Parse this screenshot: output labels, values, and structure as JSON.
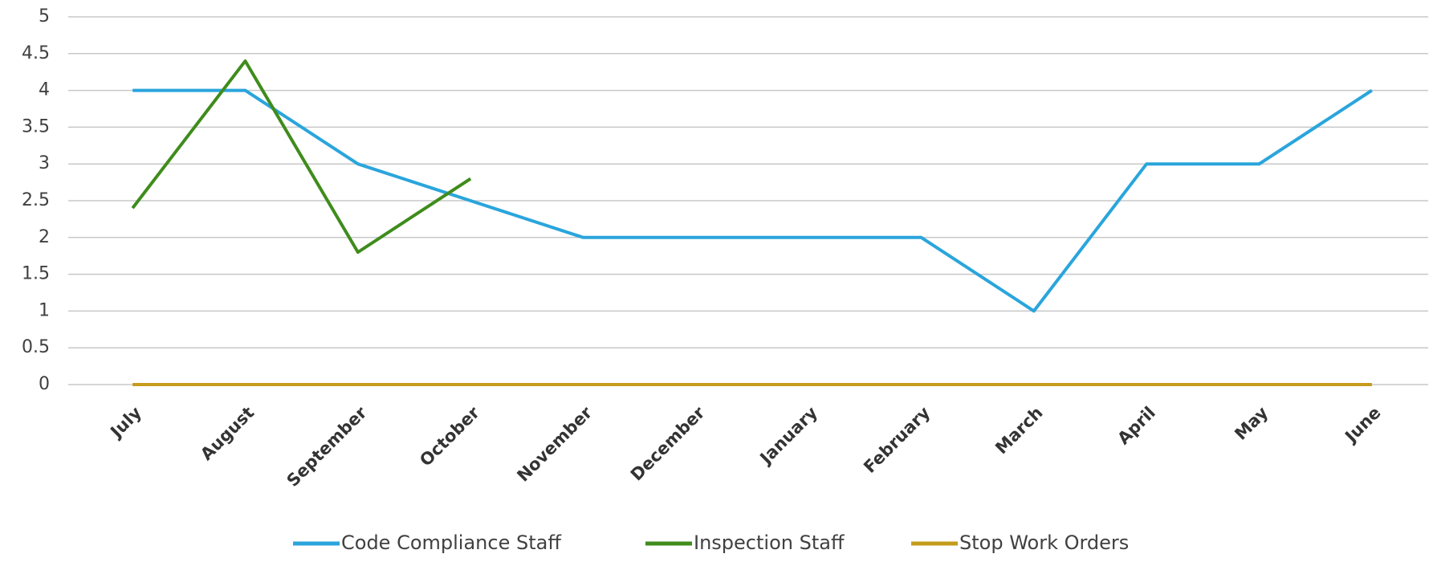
{
  "chart_data": {
    "type": "line",
    "categories": [
      "July",
      "August",
      "September",
      "October",
      "November",
      "December",
      "January",
      "February",
      "March",
      "April",
      "May",
      "June"
    ],
    "series": [
      {
        "name": "Code Compliance Staff",
        "color": "#2aa5dc",
        "values": [
          4,
          4,
          3,
          2.5,
          2,
          2,
          2,
          2,
          1,
          3,
          3,
          4
        ]
      },
      {
        "name": "Inspection Staff",
        "color": "#3f8c1c",
        "values": [
          2.4,
          4.4,
          1.8,
          2.8,
          null,
          null,
          null,
          null,
          null,
          null,
          null,
          null
        ]
      },
      {
        "name": "Stop Work Orders",
        "color": "#c59b1b",
        "values": [
          0,
          0,
          0,
          0,
          0,
          0,
          0,
          0,
          0,
          0,
          0,
          0
        ]
      }
    ],
    "ylim": [
      0,
      5
    ],
    "yticks": [
      0,
      0.5,
      1,
      1.5,
      2,
      2.5,
      3,
      3.5,
      4,
      4.5,
      5
    ],
    "grid": true,
    "legend": "bottom"
  }
}
